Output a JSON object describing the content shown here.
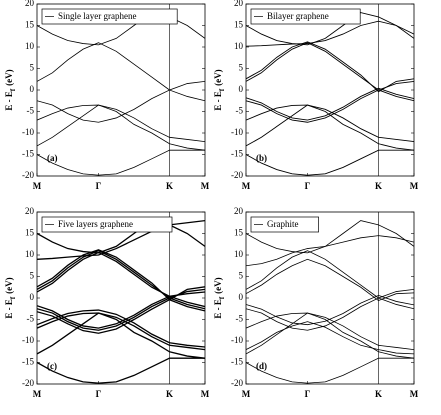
{
  "chart_data": [
    {
      "type": "line",
      "legend": "Single layer graphene",
      "panel_label": "(a)",
      "ylabel": "E - E",
      "ylabel_sub": "f",
      "ylabel_unit": "(eV)",
      "line_width": 0.8,
      "x": [
        0,
        0.217,
        0.433,
        0.65,
        0.866,
        1.116,
        1.366,
        1.616,
        1.866,
        2.116,
        2.366
      ],
      "xlim": [
        0,
        2.366
      ],
      "xticks": [
        {
          "value": 0,
          "label": "M"
        },
        {
          "value": 0.866,
          "label": "Γ"
        },
        {
          "value": 1.866,
          "label": "K"
        },
        {
          "value": 2.366,
          "label": "M"
        }
      ],
      "ylim": [
        -20,
        20
      ],
      "yticks": [
        -20,
        -15,
        -10,
        -5,
        0,
        5,
        10,
        15,
        20
      ],
      "series": [
        {
          "color": "#000000",
          "values": [
            -2.5,
            -3.5,
            -5.5,
            -7,
            -7.5,
            -6.5,
            -4.5,
            -2,
            0,
            -1.5,
            -2.5
          ]
        },
        {
          "color": "#000000",
          "values": [
            2,
            4,
            7,
            9.5,
            11,
            9,
            6,
            3,
            0,
            1.5,
            2
          ]
        },
        {
          "color": "#000000",
          "values": [
            -7,
            -5.5,
            -4.2,
            -3.6,
            -3.5,
            -4.5,
            -6.5,
            -9,
            -11,
            -11.5,
            -12
          ]
        },
        {
          "color": "#000000",
          "values": [
            -13,
            -11,
            -8.5,
            -6,
            -3.5,
            -5,
            -8,
            -10,
            -12.5,
            -13.5,
            -14
          ]
        },
        {
          "color": "#000000",
          "values": [
            -15,
            -17,
            -18.5,
            -19.5,
            -19.8,
            -19.5,
            -18,
            -16,
            -14,
            -14,
            -14
          ]
        },
        {
          "color": "#000000",
          "values": [
            15,
            13,
            11.5,
            10.8,
            10.5,
            12,
            15,
            18,
            17,
            15,
            12
          ]
        }
      ]
    },
    {
      "type": "line",
      "legend": "Bilayer graphene",
      "panel_label": "(b)",
      "ylabel": "E - E",
      "ylabel_sub": "f",
      "ylabel_unit": "(eV)",
      "line_width": 0.9,
      "x": [
        0,
        0.217,
        0.433,
        0.65,
        0.866,
        1.116,
        1.366,
        1.616,
        1.866,
        2.116,
        2.366
      ],
      "xlim": [
        0,
        2.366
      ],
      "xticks": [
        {
          "value": 0,
          "label": "M"
        },
        {
          "value": 0.866,
          "label": "Γ"
        },
        {
          "value": 1.866,
          "label": "K"
        },
        {
          "value": 2.366,
          "label": "M"
        }
      ],
      "ylim": [
        -20,
        20
      ],
      "yticks": [
        -20,
        -15,
        -10,
        -5,
        0,
        5,
        10,
        15,
        20
      ],
      "series": [
        {
          "color": "#000000",
          "values": [
            -2.5,
            -3.5,
            -5.5,
            -7,
            -7.5,
            -6.5,
            -4.5,
            -2,
            0,
            -1.5,
            -2.5
          ]
        },
        {
          "color": "#000000",
          "values": [
            -1.8,
            -3,
            -5,
            -6.5,
            -7,
            -6,
            -4,
            -1.5,
            0.4,
            -1,
            -2
          ]
        },
        {
          "color": "#000000",
          "values": [
            2,
            4,
            7,
            9.5,
            11,
            9,
            6,
            3,
            0,
            1.5,
            2
          ]
        },
        {
          "color": "#000000",
          "values": [
            2.6,
            4.6,
            7.6,
            10,
            11.2,
            9.5,
            6.5,
            3.5,
            -0.4,
            2,
            2.6
          ]
        },
        {
          "color": "#000000",
          "values": [
            -7,
            -5.5,
            -4.2,
            -3.6,
            -3.5,
            -4.5,
            -6.5,
            -9,
            -11,
            -11.5,
            -12
          ]
        },
        {
          "color": "#000000",
          "values": [
            -13,
            -11,
            -8.5,
            -6,
            -3.5,
            -5,
            -8,
            -10,
            -12.5,
            -13.5,
            -14
          ]
        },
        {
          "color": "#000000",
          "values": [
            -15,
            -17,
            -18.5,
            -19.5,
            -19.8,
            -19.5,
            -18,
            -16,
            -14,
            -14,
            -14
          ]
        },
        {
          "color": "#000000",
          "values": [
            10.2,
            10.3,
            10.5,
            10.7,
            10.8,
            11.5,
            13,
            15,
            16,
            15,
            13
          ]
        },
        {
          "color": "#000000",
          "values": [
            15,
            13,
            11.5,
            10.8,
            10.5,
            12,
            15,
            18,
            17,
            15,
            12
          ]
        }
      ]
    },
    {
      "type": "line",
      "legend": "Five layers graphene",
      "panel_label": "(c)",
      "ylabel": "E - E",
      "ylabel_sub": "f",
      "ylabel_unit": "(eV)",
      "line_width": 1.3,
      "x": [
        0,
        0.217,
        0.433,
        0.65,
        0.866,
        1.116,
        1.366,
        1.616,
        1.866,
        2.116,
        2.366
      ],
      "xlim": [
        0,
        2.366
      ],
      "xticks": [
        {
          "value": 0,
          "label": "M"
        },
        {
          "value": 0.866,
          "label": "Γ"
        },
        {
          "value": 1.866,
          "label": "K"
        },
        {
          "value": 2.366,
          "label": "M"
        }
      ],
      "ylim": [
        -20,
        20
      ],
      "yticks": [
        -20,
        -15,
        -10,
        -5,
        0,
        5,
        10,
        15,
        20
      ],
      "series": [
        {
          "color": "#000000",
          "values": [
            -2.5,
            -3.5,
            -5.5,
            -7,
            -7.5,
            -6.5,
            -4.5,
            -2,
            0,
            -1.5,
            -2.5
          ]
        },
        {
          "color": "#000000",
          "values": [
            -1.8,
            -3,
            -5,
            -6.5,
            -7,
            -6,
            -4,
            -1.5,
            0.4,
            -1,
            -2
          ]
        },
        {
          "color": "#000000",
          "values": [
            -3.2,
            -4.2,
            -6,
            -7.6,
            -8.2,
            -7.2,
            -5,
            -2.6,
            -0.4,
            -2,
            -3
          ]
        },
        {
          "color": "#000000",
          "values": [
            2,
            4,
            7,
            9.5,
            11,
            9,
            6,
            3,
            0,
            1.5,
            2
          ]
        },
        {
          "color": "#000000",
          "values": [
            2.6,
            4.6,
            7.6,
            10,
            11.2,
            9.5,
            6.5,
            3.5,
            -0.4,
            2,
            2.6
          ]
        },
        {
          "color": "#000000",
          "values": [
            1.4,
            3.4,
            6.4,
            9,
            10.6,
            8.5,
            5.5,
            2.5,
            0.4,
            1,
            1.4
          ]
        },
        {
          "color": "#000000",
          "values": [
            -7,
            -5.5,
            -4.2,
            -3.6,
            -3.5,
            -4.5,
            -6.5,
            -9,
            -11,
            -11.5,
            -12
          ]
        },
        {
          "color": "#000000",
          "values": [
            -6.2,
            -4.8,
            -3.6,
            -3,
            -2.8,
            -3.8,
            -5.8,
            -8.4,
            -10.4,
            -11,
            -11.4
          ]
        },
        {
          "color": "#000000",
          "values": [
            -13,
            -11,
            -8.5,
            -6,
            -3.5,
            -5,
            -8,
            -10,
            -12.5,
            -13.5,
            -14
          ]
        },
        {
          "color": "#000000",
          "values": [
            -15,
            -17,
            -18.5,
            -19.5,
            -19.8,
            -19.5,
            -18,
            -16,
            -14,
            -14,
            -14
          ]
        },
        {
          "color": "#000000",
          "values": [
            9,
            9.2,
            9.5,
            9.8,
            10,
            11.5,
            13.5,
            15.5,
            17,
            17.5,
            18
          ]
        },
        {
          "color": "#000000",
          "values": [
            15,
            13,
            11.5,
            10.8,
            10.5,
            12,
            15,
            18,
            17,
            15,
            12
          ]
        }
      ]
    },
    {
      "type": "line",
      "legend": "Graphite",
      "panel_label": "(d)",
      "ylabel": "E - E",
      "ylabel_sub": "f",
      "ylabel_unit": "(eV)",
      "line_width": 0.8,
      "x": [
        0,
        0.217,
        0.433,
        0.65,
        0.866,
        1.116,
        1.366,
        1.616,
        1.866,
        2.116,
        2.366
      ],
      "xlim": [
        0,
        2.366
      ],
      "xticks": [
        {
          "value": 0,
          "label": "M"
        },
        {
          "value": 0.866,
          "label": "Γ"
        },
        {
          "value": 1.866,
          "label": "K"
        },
        {
          "value": 2.366,
          "label": "M"
        }
      ],
      "ylim": [
        -20,
        20
      ],
      "yticks": [
        -20,
        -15,
        -10,
        -5,
        0,
        5,
        10,
        15,
        20
      ],
      "series": [
        {
          "color": "#000000",
          "values": [
            -2.5,
            -3.5,
            -5.5,
            -7,
            -7.5,
            -6.5,
            -4.5,
            -2,
            0,
            -1.5,
            -2.5
          ]
        },
        {
          "color": "#000000",
          "values": [
            -1.5,
            -2.6,
            -4.4,
            -5.8,
            -6.2,
            -5.4,
            -3.6,
            -1.2,
            0.6,
            -0.8,
            -1.6
          ]
        },
        {
          "color": "#000000",
          "values": [
            2,
            4,
            7,
            9.5,
            11,
            9,
            6,
            3,
            0,
            1.5,
            2
          ]
        },
        {
          "color": "#000000",
          "values": [
            1,
            3,
            5.5,
            7.5,
            9,
            7.5,
            5,
            2.5,
            -0.6,
            1,
            1.2
          ]
        },
        {
          "color": "#000000",
          "values": [
            -7,
            -5.5,
            -4.2,
            -3.6,
            -3.5,
            -4.5,
            -6.5,
            -9,
            -11,
            -11.5,
            -12
          ]
        },
        {
          "color": "#000000",
          "values": [
            -13,
            -11,
            -8.5,
            -6,
            -3.5,
            -5,
            -8,
            -10,
            -12.5,
            -13.5,
            -14
          ]
        },
        {
          "color": "#000000",
          "values": [
            -12,
            -10.2,
            -8,
            -6.5,
            -5.5,
            -6.8,
            -9,
            -11,
            -12,
            -12.8,
            -13
          ]
        },
        {
          "color": "#000000",
          "values": [
            -15,
            -17,
            -18.5,
            -19.5,
            -19.8,
            -19.5,
            -18,
            -16,
            -14,
            -14,
            -14
          ]
        },
        {
          "color": "#000000",
          "values": [
            7.5,
            8,
            9,
            10.5,
            11.5,
            12,
            13,
            14,
            14.5,
            14,
            13
          ]
        },
        {
          "color": "#000000",
          "values": [
            15,
            13,
            11.5,
            10.8,
            10.5,
            12,
            15,
            18,
            17,
            15,
            12
          ]
        }
      ]
    }
  ]
}
